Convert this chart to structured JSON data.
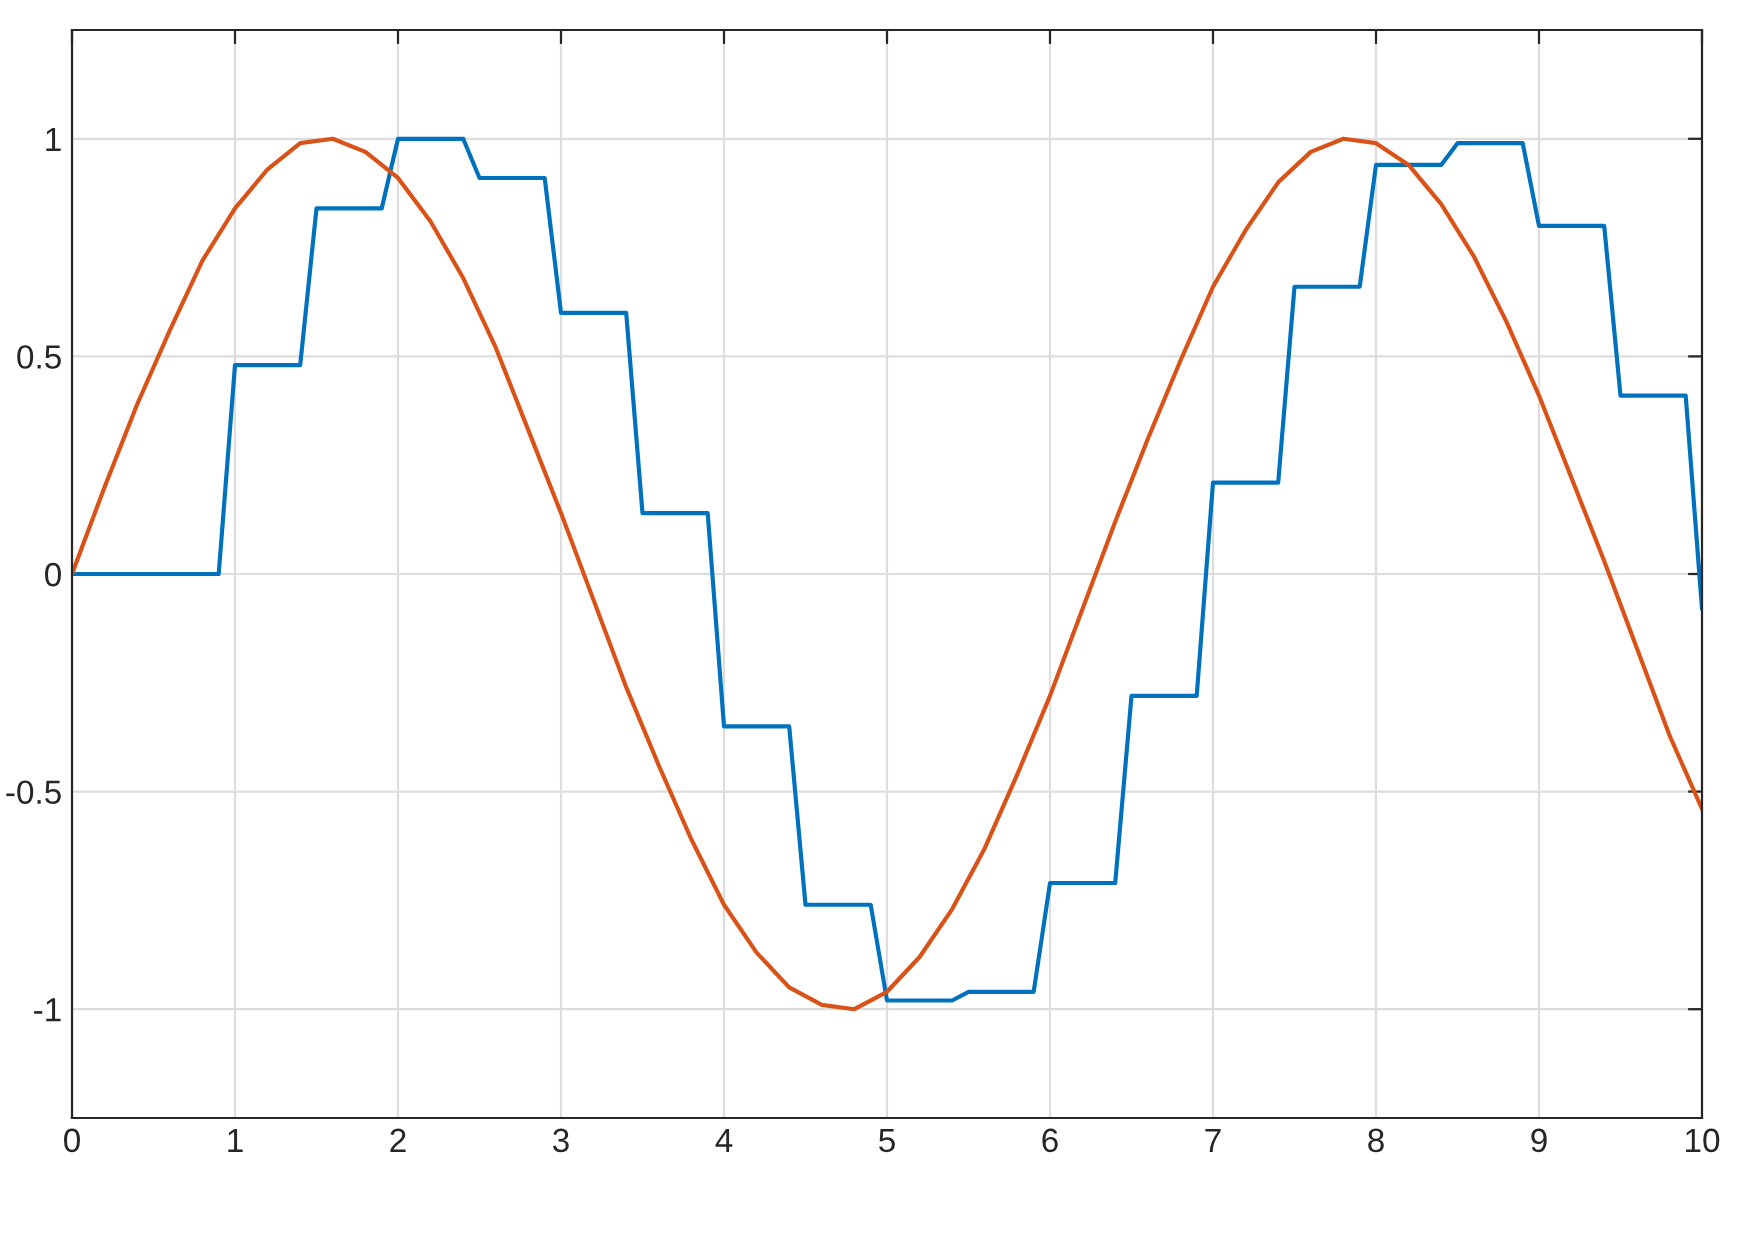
{
  "chart_data": {
    "type": "line",
    "xlim": [
      0,
      10
    ],
    "ylim": [
      -1.25,
      1.25
    ],
    "xticks": [
      0,
      1,
      2,
      3,
      4,
      5,
      6,
      7,
      8,
      9,
      10
    ],
    "yticks": [
      -1,
      -0.5,
      0,
      0.5,
      1
    ],
    "grid": true,
    "line_style": "solid",
    "marker": "none",
    "series": [
      {
        "color": "#0072bd",
        "x": [
          0,
          0.9,
          1.0,
          1.4,
          1.5,
          1.9,
          2.0,
          2.4,
          2.5,
          2.9,
          3.0,
          3.4,
          3.5,
          3.9,
          4.0,
          4.4,
          4.5,
          4.9,
          5.0,
          5.4,
          5.5,
          5.9,
          6.0,
          6.4,
          6.5,
          6.9,
          7.0,
          7.4,
          7.5,
          7.9,
          8.0,
          8.4,
          8.5,
          8.9,
          9.0,
          9.4,
          9.5,
          9.9,
          10.0
        ],
        "values": [
          0,
          0,
          0.48,
          0.48,
          0.84,
          0.84,
          1.0,
          1.0,
          0.91,
          0.91,
          0.6,
          0.6,
          0.14,
          0.14,
          -0.35,
          -0.35,
          -0.76,
          -0.76,
          -0.98,
          -0.98,
          -0.96,
          -0.96,
          -0.71,
          -0.71,
          -0.28,
          -0.28,
          0.21,
          0.21,
          0.66,
          0.66,
          0.94,
          0.94,
          0.99,
          0.99,
          0.8,
          0.8,
          0.41,
          0.41,
          -0.08
        ]
      },
      {
        "color": "#d95319",
        "x": [
          0,
          0.2,
          0.4,
          0.6,
          0.8,
          1.0,
          1.2,
          1.4,
          1.6,
          1.8,
          2.0,
          2.2,
          2.4,
          2.6,
          2.8,
          3.0,
          3.2,
          3.4,
          3.6,
          3.8,
          4.0,
          4.2,
          4.4,
          4.6,
          4.8,
          5.0,
          5.2,
          5.4,
          5.6,
          5.8,
          6.0,
          6.2,
          6.4,
          6.6,
          6.8,
          7.0,
          7.2,
          7.4,
          7.6,
          7.8,
          8.0,
          8.2,
          8.4,
          8.6,
          8.8,
          9.0,
          9.2,
          9.4,
          9.6,
          9.8,
          10.0
        ],
        "values": [
          0,
          0.2,
          0.39,
          0.56,
          0.72,
          0.84,
          0.93,
          0.99,
          1.0,
          0.97,
          0.91,
          0.81,
          0.68,
          0.52,
          0.33,
          0.14,
          -0.06,
          -0.26,
          -0.44,
          -0.61,
          -0.76,
          -0.87,
          -0.95,
          -0.99,
          -1.0,
          -0.96,
          -0.88,
          -0.77,
          -0.63,
          -0.46,
          -0.28,
          -0.08,
          0.12,
          0.31,
          0.49,
          0.66,
          0.79,
          0.9,
          0.97,
          1.0,
          0.99,
          0.94,
          0.85,
          0.73,
          0.58,
          0.41,
          0.22,
          0.03,
          -0.17,
          -0.37,
          -0.54
        ]
      }
    ]
  }
}
